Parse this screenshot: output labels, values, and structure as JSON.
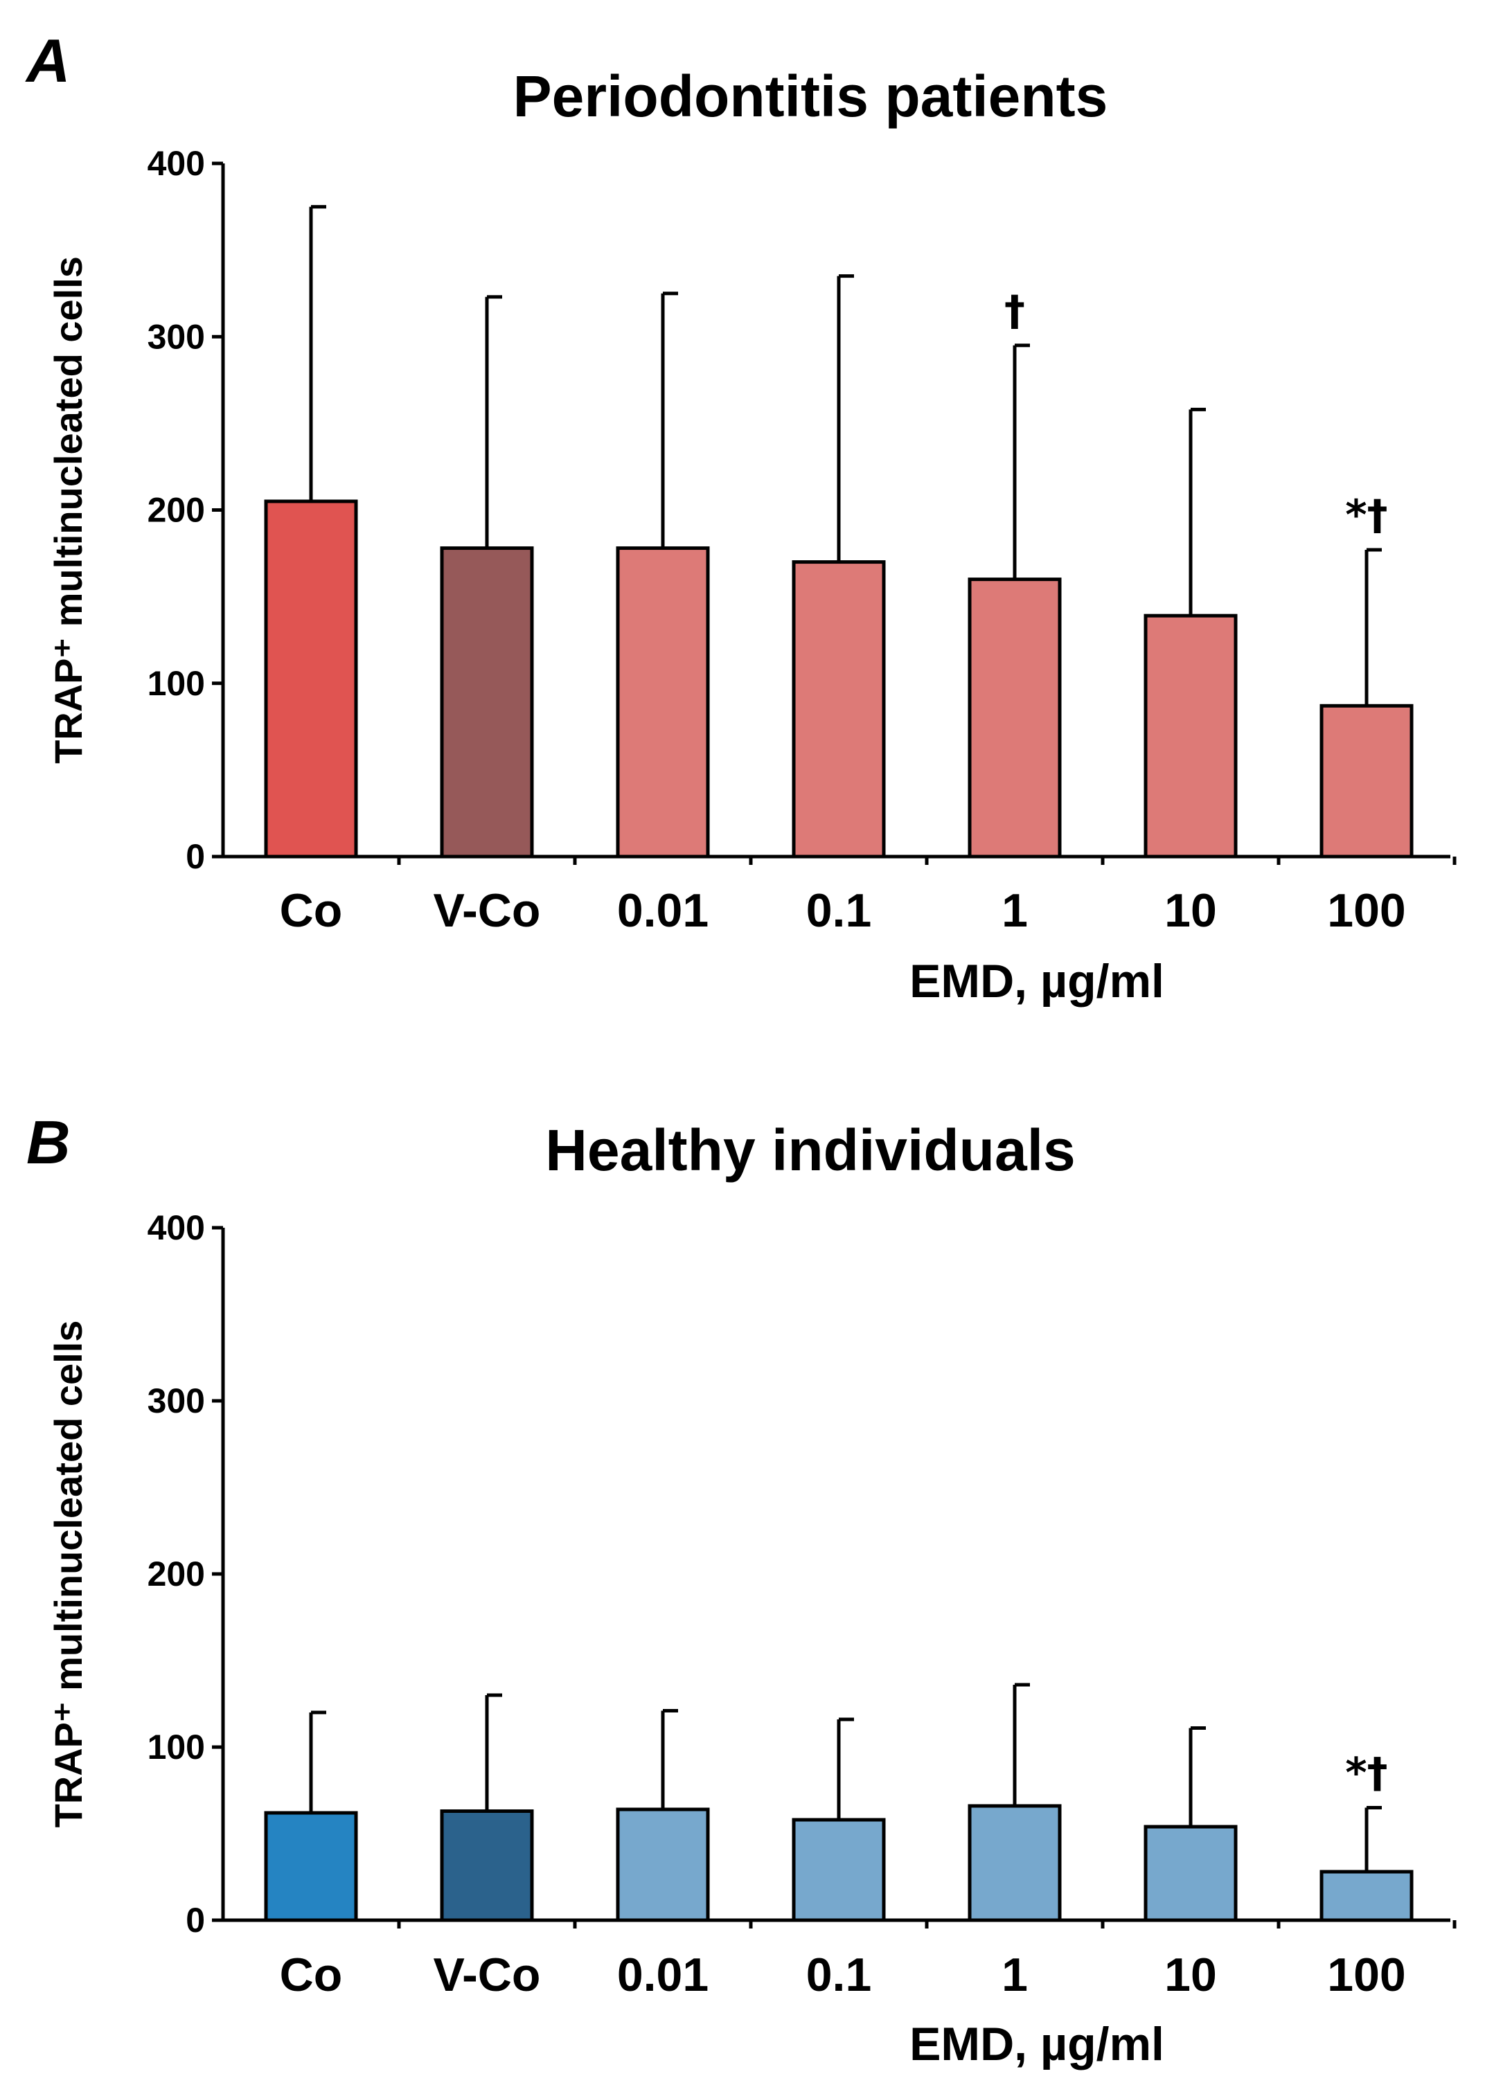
{
  "chart_data": [
    {
      "panel": "A",
      "type": "bar",
      "title": "Periodontitis patients",
      "ylabel": "TRAP⁺ multinucleated cells",
      "xlabel": "EMD, µg/ml",
      "ylim": [
        0,
        400
      ],
      "yticks": [
        0,
        100,
        200,
        300,
        400
      ],
      "categories": [
        "Co",
        "V-Co",
        "0.01",
        "0.1",
        "1",
        "10",
        "100"
      ],
      "values": [
        205,
        178,
        178,
        170,
        160,
        139,
        87
      ],
      "error_upper": [
        375,
        323,
        325,
        335,
        295,
        258,
        177
      ],
      "colors": [
        "#e05451",
        "#965959",
        "#dd7a77",
        "#dd7a77",
        "#dd7a77",
        "#dd7a77",
        "#dd7a77"
      ],
      "annotations": [
        "",
        "",
        "",
        "",
        "†",
        "",
        "*†"
      ]
    },
    {
      "panel": "B",
      "type": "bar",
      "title": "Healthy individuals",
      "ylabel": "TRAP⁺ multinucleated cells",
      "xlabel": "EMD, µg/ml",
      "ylim": [
        0,
        400
      ],
      "yticks": [
        0,
        100,
        200,
        300,
        400
      ],
      "categories": [
        "Co",
        "V-Co",
        "0.01",
        "0.1",
        "1",
        "10",
        "100"
      ],
      "values": [
        62,
        63,
        64,
        58,
        66,
        54,
        28
      ],
      "error_upper": [
        120,
        130,
        121,
        116,
        136,
        111,
        65
      ],
      "colors": [
        "#2584c2",
        "#2b628c",
        "#77a8cd",
        "#77a8cd",
        "#77a8cd",
        "#77a8cd",
        "#77a8cd"
      ],
      "annotations": [
        "",
        "",
        "",
        "",
        "",
        "",
        "*†"
      ]
    }
  ]
}
